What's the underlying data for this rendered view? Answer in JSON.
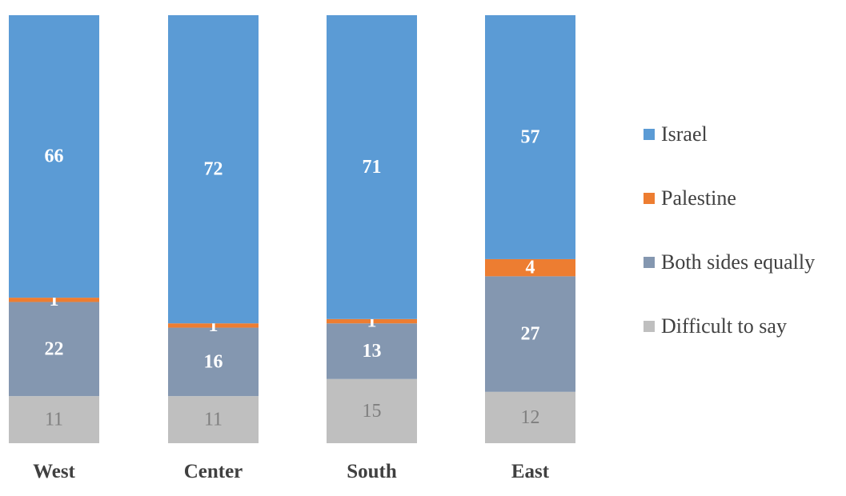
{
  "chart_data": {
    "type": "bar",
    "stacked": true,
    "percent_stacked": true,
    "categories": [
      "West",
      "Center",
      "South",
      "East"
    ],
    "series": [
      {
        "name": "Difficult to say",
        "color": "#bfbfbf",
        "values": [
          11,
          11,
          15,
          12
        ]
      },
      {
        "name": "Both sides equally",
        "color": "#8497b0",
        "values": [
          22,
          16,
          13,
          27
        ]
      },
      {
        "name": "Palestine",
        "color": "#ed7d31",
        "values": [
          1,
          1,
          1,
          4
        ]
      },
      {
        "name": "Israel",
        "color": "#5b9bd5",
        "values": [
          66,
          72,
          71,
          57
        ]
      }
    ],
    "legend_order": [
      "Israel",
      "Palestine",
      "Both sides equally",
      "Difficult to say"
    ],
    "legend_position": "right",
    "grid": false,
    "data_labels": true,
    "title": "",
    "xlabel": "",
    "ylabel": ""
  }
}
